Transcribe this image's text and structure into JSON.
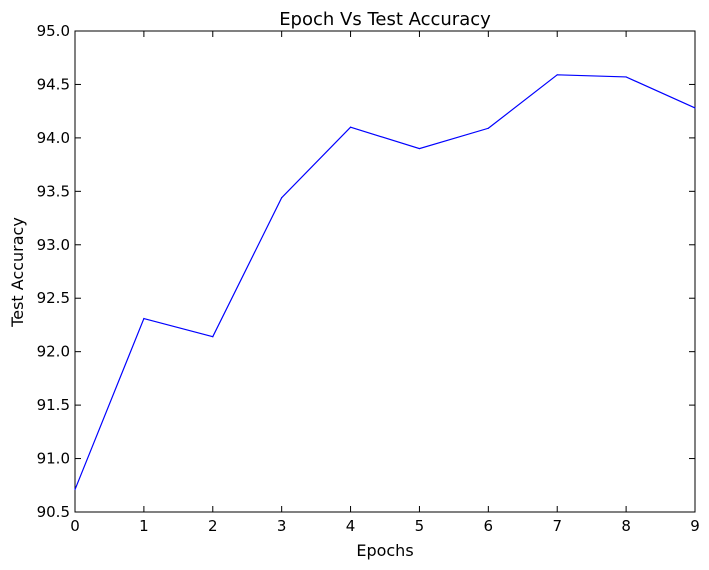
{
  "chart_data": {
    "type": "line",
    "title": "Epoch Vs Test Accuracy",
    "xlabel": "Epochs",
    "ylabel": "Test Accuracy",
    "xlim": [
      0,
      9
    ],
    "ylim": [
      90.5,
      95.0
    ],
    "x_ticks": [
      0,
      1,
      2,
      3,
      4,
      5,
      6,
      7,
      8,
      9
    ],
    "y_ticks": [
      90.5,
      91.0,
      91.5,
      92.0,
      92.5,
      93.0,
      93.5,
      94.0,
      94.5,
      95.0
    ],
    "grid": false,
    "legend": "none",
    "series": [
      {
        "color": "#0000ff",
        "x": [
          0,
          1,
          2,
          3,
          4,
          5,
          6,
          7,
          8,
          9
        ],
        "y": [
          90.71,
          92.31,
          92.14,
          93.44,
          94.1,
          93.9,
          94.09,
          94.59,
          94.57,
          94.28
        ]
      }
    ]
  }
}
